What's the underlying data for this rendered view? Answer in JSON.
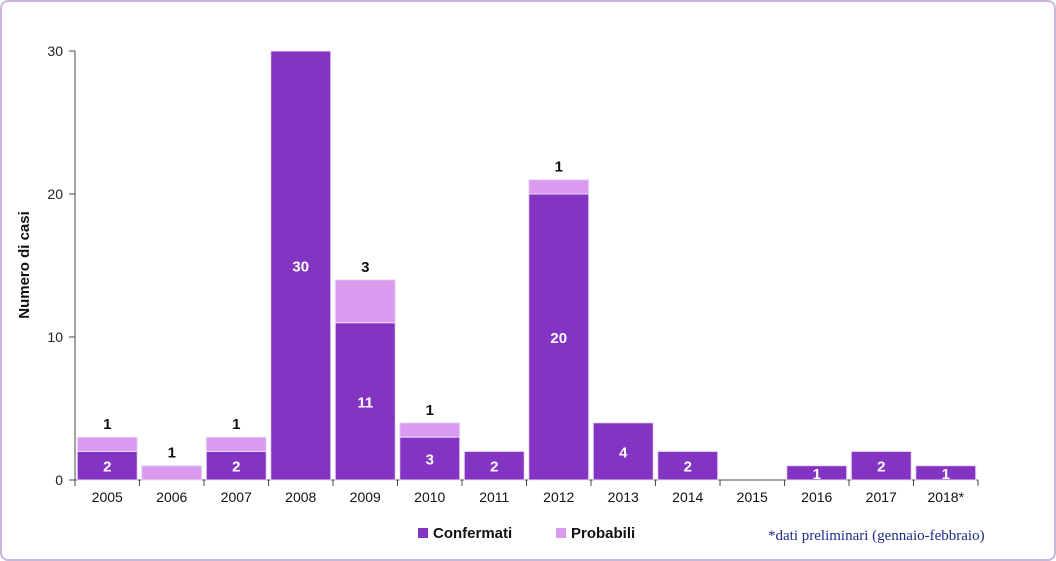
{
  "chart_data": {
    "type": "bar",
    "stacked": true,
    "ylabel": "Numero di casi",
    "xlabel": "",
    "ylim": [
      0,
      30
    ],
    "yticks": [
      0,
      10,
      20,
      30
    ],
    "grid": false,
    "legend_position": "bottom-center",
    "categories": [
      "2005",
      "2006",
      "2007",
      "2008",
      "2009",
      "2010",
      "2011",
      "2012",
      "2013",
      "2014",
      "2015",
      "2016",
      "2017",
      "2018*"
    ],
    "series": [
      {
        "name": "Confermati",
        "color": "#8434c2",
        "values": [
          2,
          0,
          2,
          30,
          11,
          3,
          2,
          20,
          4,
          2,
          0,
          1,
          2,
          1
        ]
      },
      {
        "name": "Probabili",
        "color": "#d99af0",
        "values": [
          1,
          1,
          1,
          0,
          3,
          1,
          0,
          1,
          0,
          0,
          0,
          0,
          0,
          0
        ]
      }
    ]
  },
  "footnote": "*dati preliminari (gennaio-febbraio)"
}
